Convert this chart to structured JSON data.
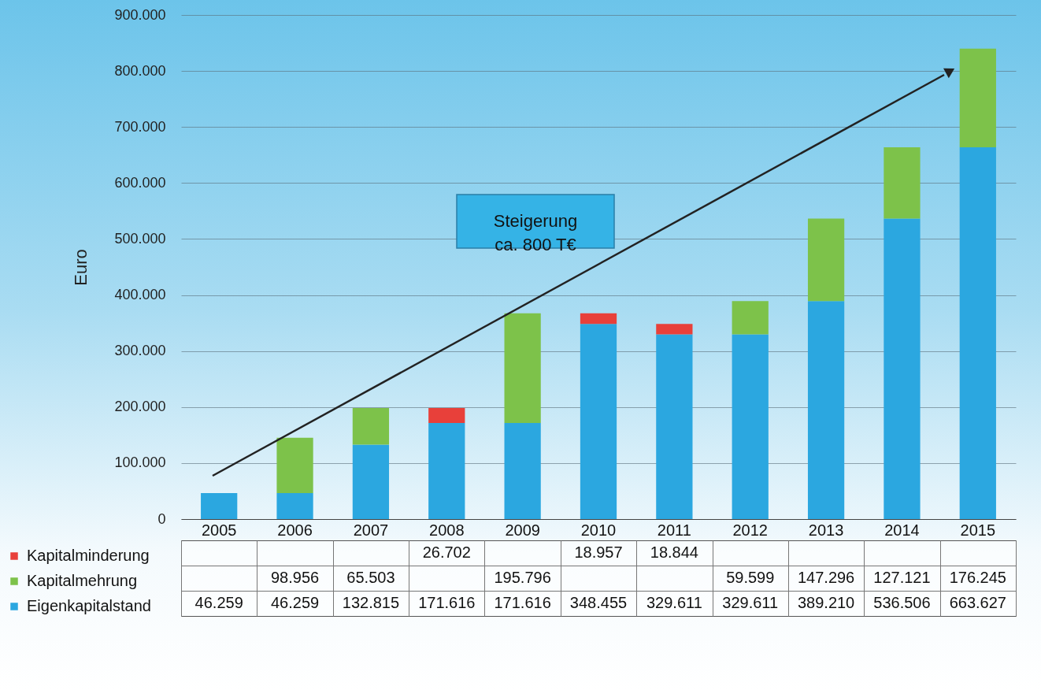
{
  "chart_data": {
    "type": "bar",
    "stacked": true,
    "ylabel": "Euro",
    "categories": [
      "2005",
      "2006",
      "2007",
      "2008",
      "2009",
      "2010",
      "2011",
      "2012",
      "2013",
      "2014",
      "2015"
    ],
    "series": [
      {
        "name": "Eigenkapitalstand",
        "color": "#2ba7e0",
        "values": [
          46259,
          46259,
          132815,
          171616,
          171616,
          348455,
          329611,
          329611,
          389210,
          536506,
          663627
        ],
        "value_labels": [
          "46.259",
          "46.259",
          "132.815",
          "171.616",
          "171.616",
          "348.455",
          "329.611",
          "329.611",
          "389.210",
          "536.506",
          "663.627"
        ]
      },
      {
        "name": "Kapitalmehrung",
        "color": "#7dc24a",
        "values": [
          null,
          98956,
          65503,
          null,
          195796,
          null,
          null,
          59599,
          147296,
          127121,
          176245
        ],
        "value_labels": [
          null,
          "98.956",
          "65.503",
          null,
          "195.796",
          null,
          null,
          "59.599",
          "147.296",
          "127.121",
          "176.245"
        ]
      },
      {
        "name": "Kapitalminderung",
        "color": "#e8403a",
        "values": [
          null,
          null,
          null,
          26702,
          null,
          18957,
          18844,
          null,
          null,
          null,
          null
        ],
        "value_labels": [
          null,
          null,
          null,
          "26.702",
          null,
          "18.957",
          "18.844",
          null,
          null,
          null,
          null
        ]
      }
    ],
    "ylim": [
      0,
      900000
    ],
    "yticks": [
      {
        "value": 0,
        "label": "0"
      },
      {
        "value": 100000,
        "label": "100.000"
      },
      {
        "value": 200000,
        "label": "200.000"
      },
      {
        "value": 300000,
        "label": "300.000"
      },
      {
        "value": 400000,
        "label": "400.000"
      },
      {
        "value": 500000,
        "label": "500.000"
      },
      {
        "value": 600000,
        "label": "600.000"
      },
      {
        "value": 700000,
        "label": "700.000"
      },
      {
        "value": 800000,
        "label": "800.000"
      },
      {
        "value": 900000,
        "label": "900.000"
      }
    ],
    "grid": "y",
    "legend": "bottom left",
    "annotations": [
      "Steigerung ca. 800 T€"
    ]
  }
}
